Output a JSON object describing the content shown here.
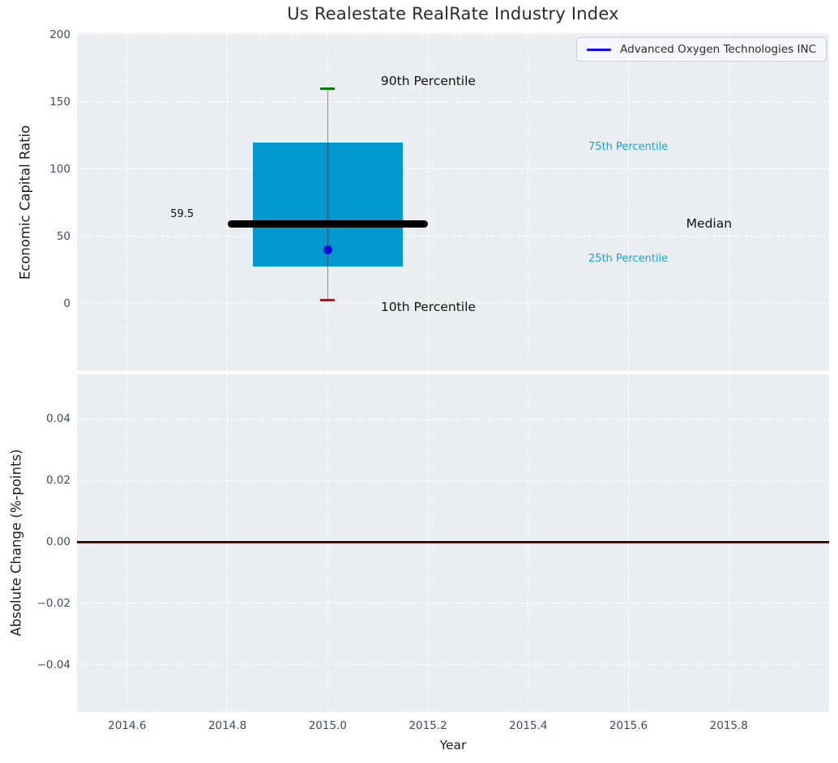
{
  "title": "Us Realestate RealRate Industry Index",
  "legend": {
    "label": "Advanced Oxygen Technologies INC",
    "line_color": "#0d0dee"
  },
  "colors": {
    "figure_bg": "#ffffff",
    "plot_bg": "#eaeef0",
    "grid": "#ffffff",
    "tick_label": "#3d4c63",
    "title": "#262b33",
    "axis_label": "#1c1c1c",
    "box_fill": "#0099cd",
    "median_line": "#000000",
    "whisker": "rgba(30,30,30,0.5)",
    "cap_high": "#008000",
    "cap_low": "#e60000",
    "company_point": "#0d0de0",
    "percentile_label": "#1f9fd1",
    "annotation_text": "#111111",
    "zero_line": "#000000",
    "company_change_line": "#8a3a33"
  },
  "chart_data": [
    {
      "type": "boxplot",
      "title": "Us Realestate RealRate Industry Index",
      "ylabel": "Economic Capital Ratio",
      "xlim": [
        2014.5,
        2016.0
      ],
      "ylim": [
        -50,
        201.2
      ],
      "yticks": [
        200,
        150,
        100,
        50,
        0
      ],
      "ytick_labels": [
        "200",
        "150",
        "100",
        "50",
        "0"
      ],
      "xticks": [
        2014.6,
        2014.8,
        2015.0,
        2015.2,
        2015.4,
        2015.6,
        2015.8
      ],
      "xtick_labels": [],
      "grid": true,
      "legend_position": "upper right",
      "box": {
        "x": 2015.0,
        "p10": 2.5,
        "p25": 28,
        "median": 59.5,
        "p75": 120,
        "p90": 160,
        "box_left": 2014.85,
        "box_right": 2015.15,
        "median_left": 2014.8,
        "median_right": 2015.2,
        "median_value_label": "59.5",
        "company_point": {
          "x": 2015.0,
          "y": 40,
          "series": "Advanced Oxygen Technologies INC"
        }
      },
      "annotations": [
        {
          "text": "90th Percentile",
          "x": 2015.106,
          "y": 165.0,
          "ha": "left",
          "size": 15.5,
          "color_key": "annotation_text"
        },
        {
          "text": "75th Percentile",
          "x": 2015.52,
          "y": 116.5,
          "ha": "left",
          "size": 13,
          "color_key": "percentile_label"
        },
        {
          "text": "Median",
          "x": 2015.715,
          "y": 59.5,
          "ha": "left",
          "size": 15.5,
          "color_key": "annotation_text"
        },
        {
          "text": "25th Percentile",
          "x": 2015.52,
          "y": 33.3,
          "ha": "left",
          "size": 13,
          "color_key": "percentile_label"
        },
        {
          "text": "10th Percentile",
          "x": 2015.106,
          "y": -3.0,
          "ha": "left",
          "size": 15.5,
          "color_key": "annotation_text"
        },
        {
          "text": "59.5",
          "x": 2014.733,
          "y": 66.0,
          "ha": "right",
          "size": 13,
          "color_key": "annotation_text"
        }
      ]
    },
    {
      "type": "line",
      "ylabel": "Absolute Change (%-points)",
      "xlabel": "Year",
      "xlim": [
        2014.5,
        2016.0
      ],
      "ylim": [
        -0.0553,
        0.0545
      ],
      "yticks": [
        0.04,
        0.02,
        0,
        -0.02,
        -0.04
      ],
      "ytick_labels": [
        "0.04",
        "0.02",
        "0.00",
        "−0.02",
        "−0.04"
      ],
      "xticks": [
        2014.6,
        2014.8,
        2015.0,
        2015.2,
        2015.4,
        2015.6,
        2015.8
      ],
      "xtick_labels": [
        "2014.6",
        "2014.8",
        "2015.0",
        "2015.2",
        "2015.4",
        "2015.6",
        "2015.8"
      ],
      "grid": true,
      "lines": [
        {
          "name": "company-change-line",
          "y": 0,
          "color_key": "company_change_line",
          "width": 2,
          "offset": 1
        },
        {
          "name": "zero-line",
          "y": 0,
          "color_key": "zero_line",
          "width": 2,
          "offset": 0
        }
      ]
    }
  ]
}
